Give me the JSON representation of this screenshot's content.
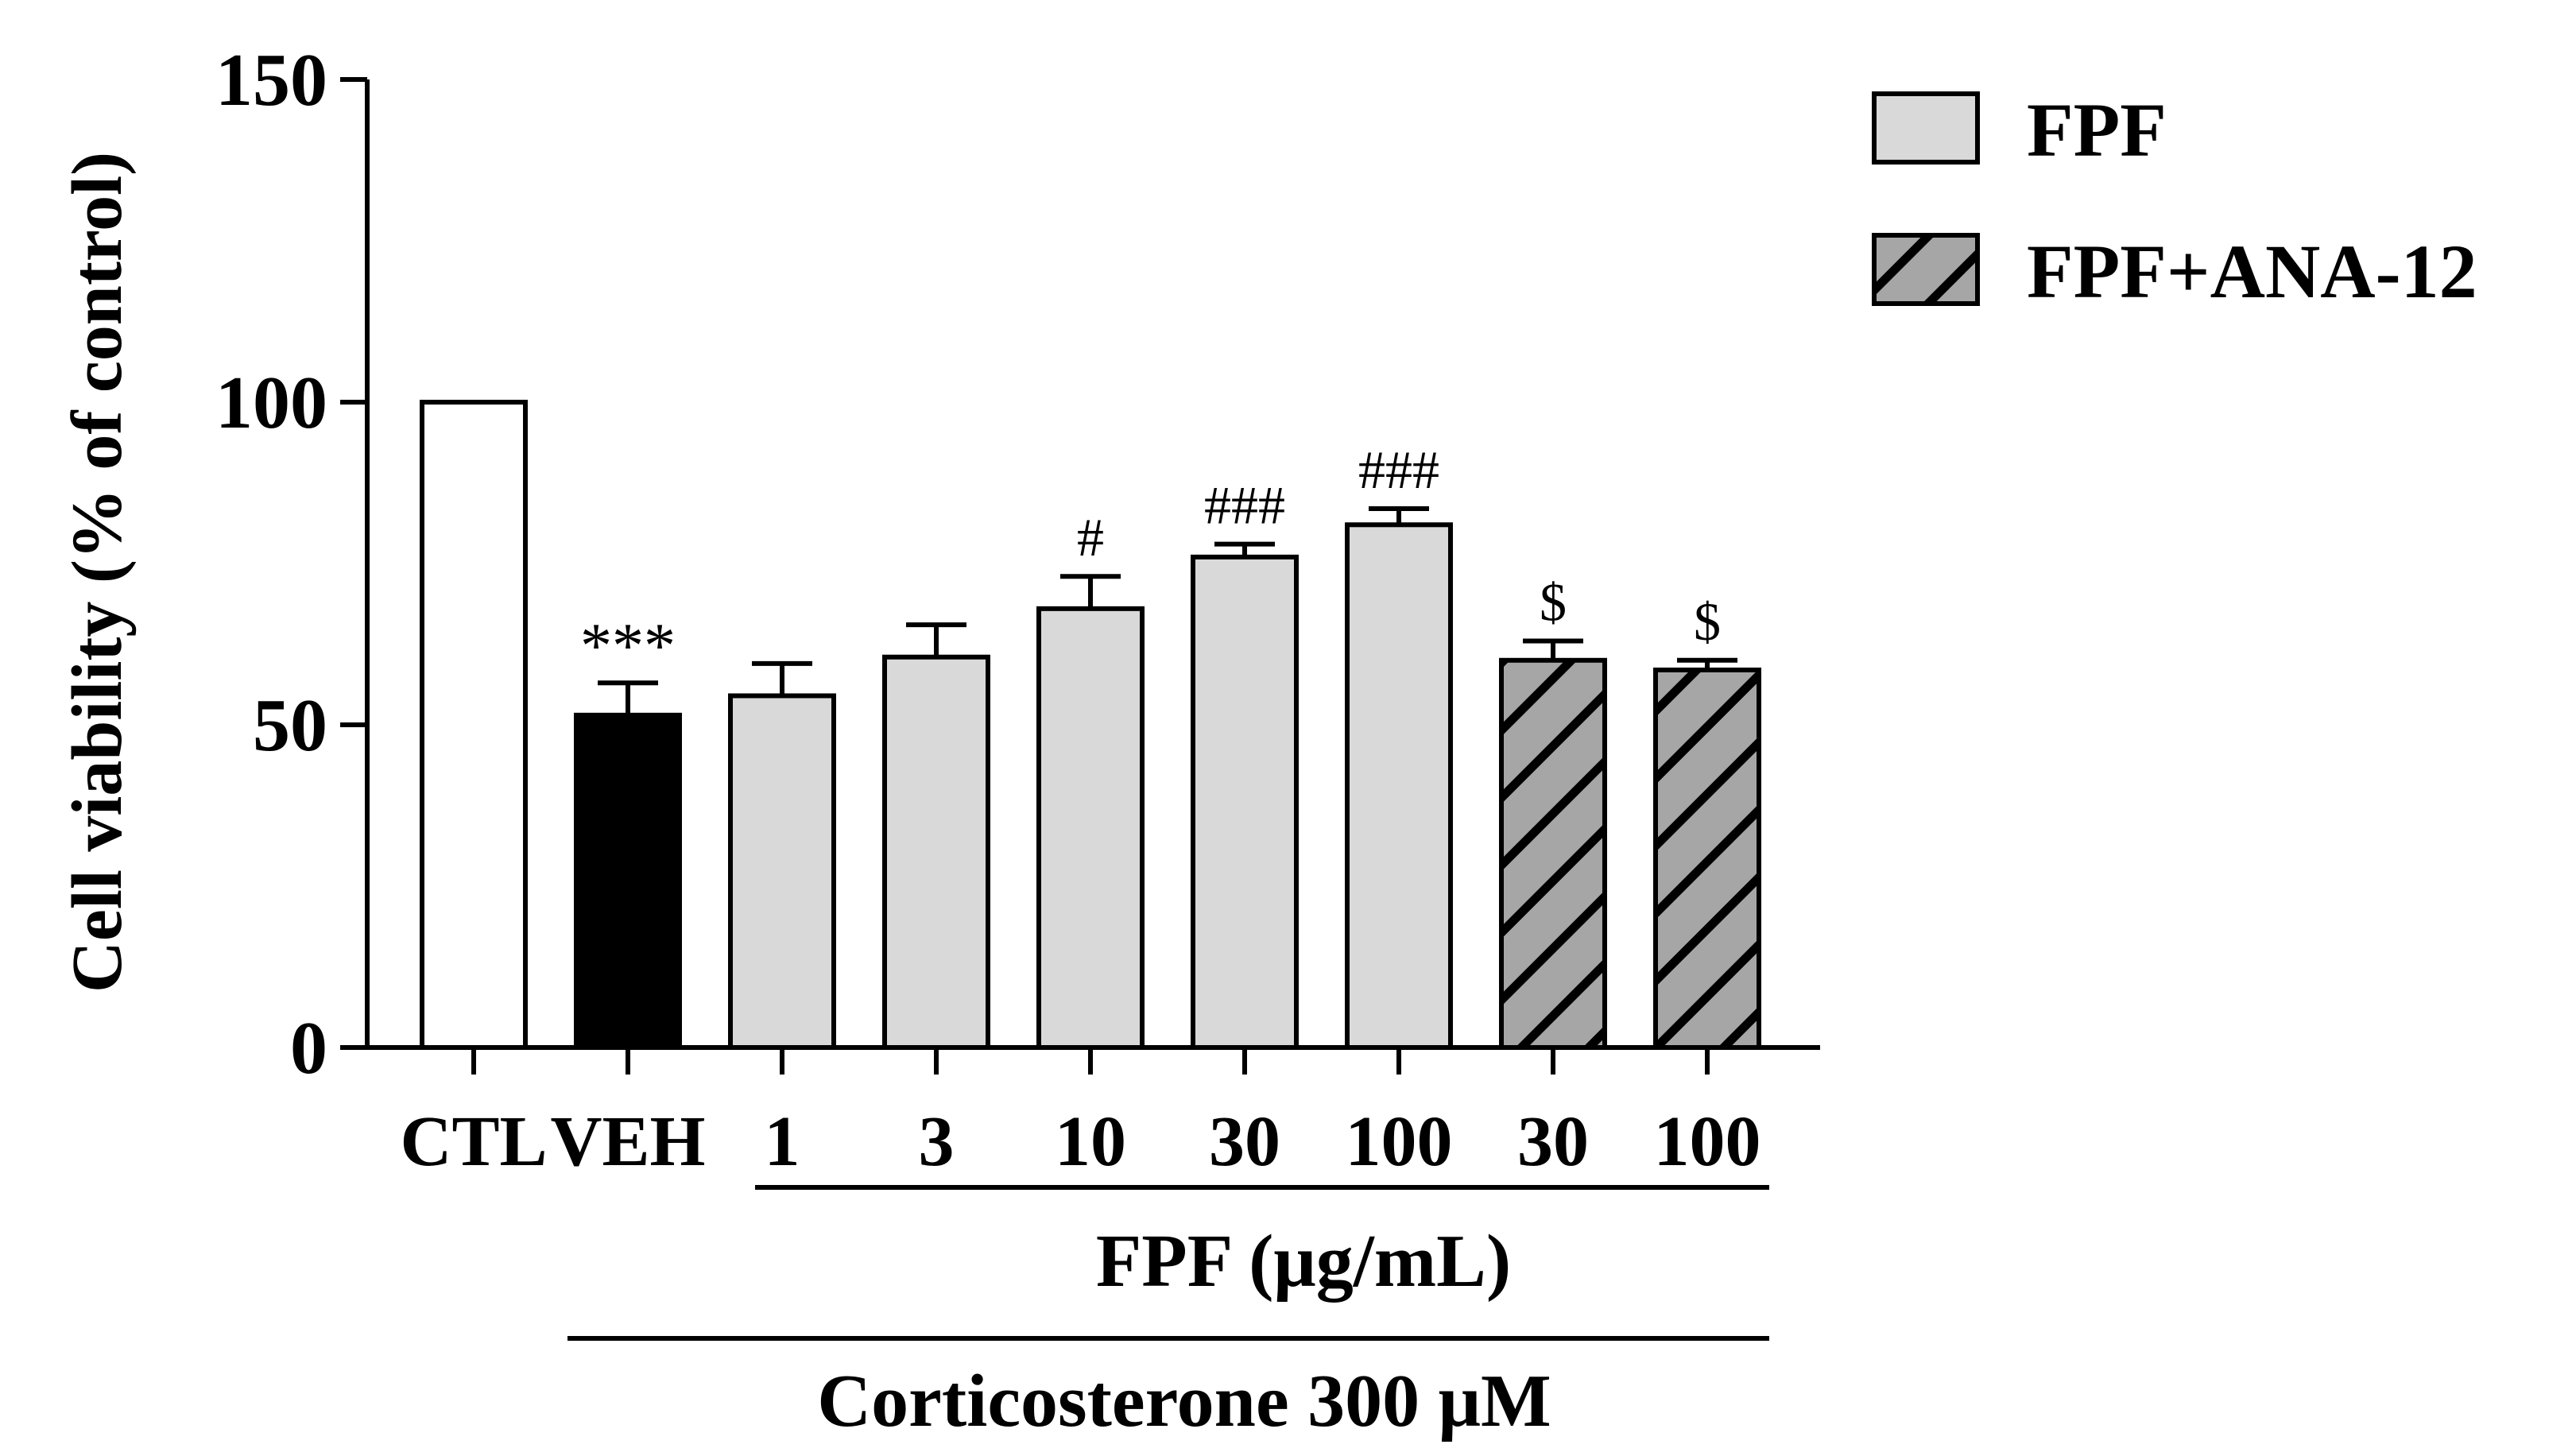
{
  "chart_data": {
    "type": "bar",
    "title": "",
    "xlabel": "",
    "ylabel": "Cell viability (% of control)",
    "ylim": [
      0,
      150
    ],
    "yticks": [
      0,
      50,
      100,
      150
    ],
    "categories": [
      "CTL",
      "VEH",
      "1",
      "3",
      "10",
      "30",
      "100",
      "30",
      "100"
    ],
    "values": [
      100,
      51.5,
      54.5,
      60.5,
      68,
      76,
      81,
      60,
      58.5
    ],
    "errors": [
      0,
      5,
      5,
      5,
      5,
      2,
      2.5,
      3,
      1.5
    ],
    "annotations": [
      "",
      "***",
      "",
      "",
      "#",
      "###",
      "###",
      "$",
      "$"
    ],
    "bar_styles": [
      "white",
      "black",
      "FPF",
      "FPF",
      "FPF",
      "FPF",
      "FPF",
      "FPF+ANA-12",
      "FPF+ANA-12"
    ],
    "legend": {
      "position": "top-right",
      "entries": [
        {
          "label": "FPF",
          "style": "FPF"
        },
        {
          "label": "FPF+ANA-12",
          "style": "FPF+ANA-12"
        }
      ]
    },
    "group_labels": {
      "fpf": "FPF (μg/mL)",
      "corticosterone": "Corticosterone 300 μM"
    },
    "colors": {
      "white": "#ffffff",
      "black": "#000000",
      "FPF": "#d9d9d9",
      "FPF+ANA-12": "#a6a6a6",
      "hatch_stroke": "#000000"
    }
  }
}
